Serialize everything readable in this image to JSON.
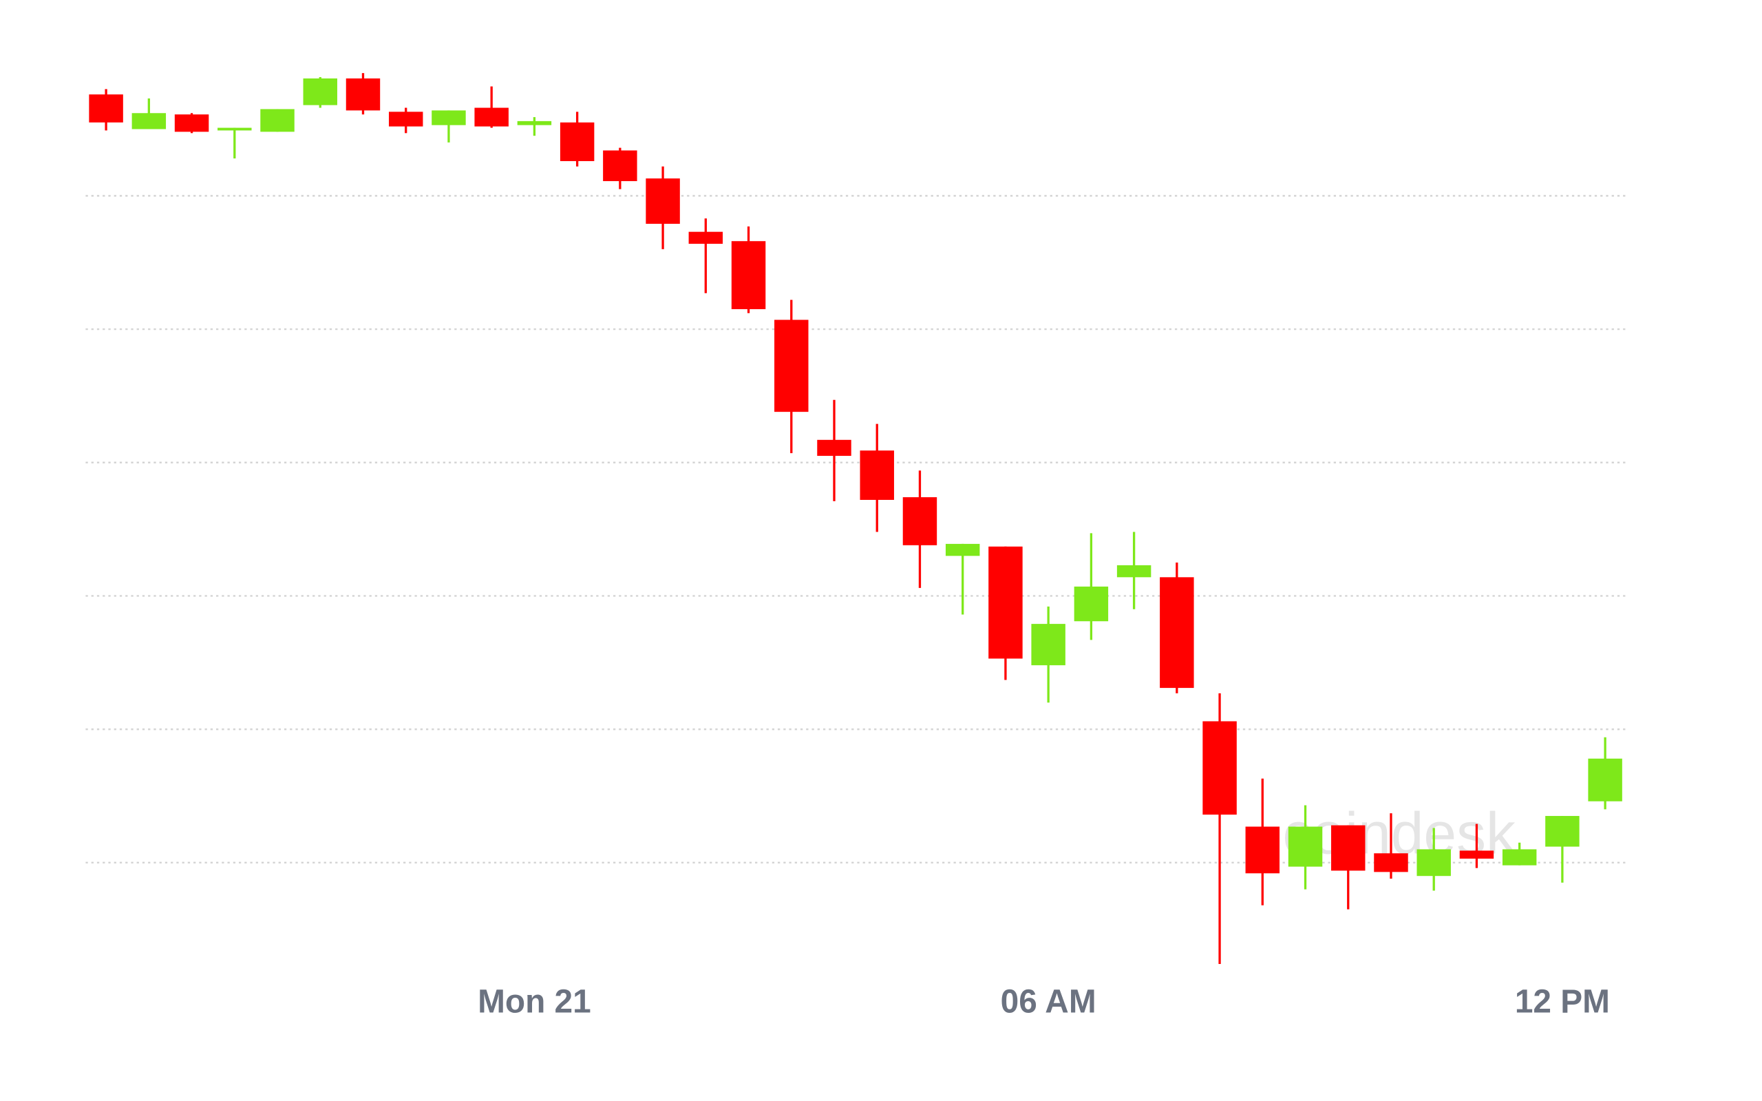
{
  "chart_data": {
    "type": "candlestick",
    "watermark": "coindesk",
    "categories": [
      null,
      null,
      null,
      null,
      null,
      null,
      null,
      null,
      null,
      null,
      "Mon 21",
      null,
      null,
      null,
      null,
      null,
      null,
      null,
      null,
      null,
      null,
      null,
      "06 AM",
      null,
      null,
      null,
      null,
      null,
      null,
      null,
      null,
      null,
      null,
      null,
      "12 PM",
      null
    ],
    "open": [
      676,
      650,
      661,
      649,
      648,
      668,
      688,
      663,
      653,
      666,
      653,
      655,
      634,
      613,
      573,
      566,
      507,
      417,
      409,
      374,
      330,
      337,
      248,
      281,
      314,
      314,
      206,
      127,
      97,
      128,
      107,
      90,
      109,
      98,
      112,
      146
    ],
    "high": [
      680,
      673,
      662,
      651,
      665,
      689,
      692,
      666,
      664,
      682,
      659,
      663,
      636,
      622,
      583,
      577,
      522,
      447,
      429,
      394,
      339,
      337,
      292,
      347,
      348,
      325,
      227,
      163,
      143,
      128,
      137,
      126,
      129,
      115,
      135,
      194
    ],
    "low": [
      649,
      650,
      647,
      628,
      648,
      666,
      661,
      647,
      640,
      651,
      645,
      622,
      605,
      560,
      527,
      512,
      407,
      371,
      348,
      306,
      286,
      237,
      220,
      267,
      290,
      227,
      24,
      68,
      80,
      65,
      88,
      79,
      96,
      98,
      85,
      140
    ],
    "close": [
      655,
      662,
      648,
      651,
      665,
      688,
      664,
      652,
      664,
      652,
      656,
      626,
      611,
      579,
      564,
      515,
      438,
      405,
      372,
      338,
      339,
      253,
      279,
      307,
      323,
      231,
      136,
      92,
      127,
      94,
      93,
      110,
      103,
      110,
      135,
      178
    ],
    "up_color": "#7ee81a",
    "down_color": "#ff0000",
    "ylim": [
      0,
      700
    ],
    "yticks": [
      100,
      200,
      300,
      400,
      500,
      600
    ],
    "grid": true
  }
}
